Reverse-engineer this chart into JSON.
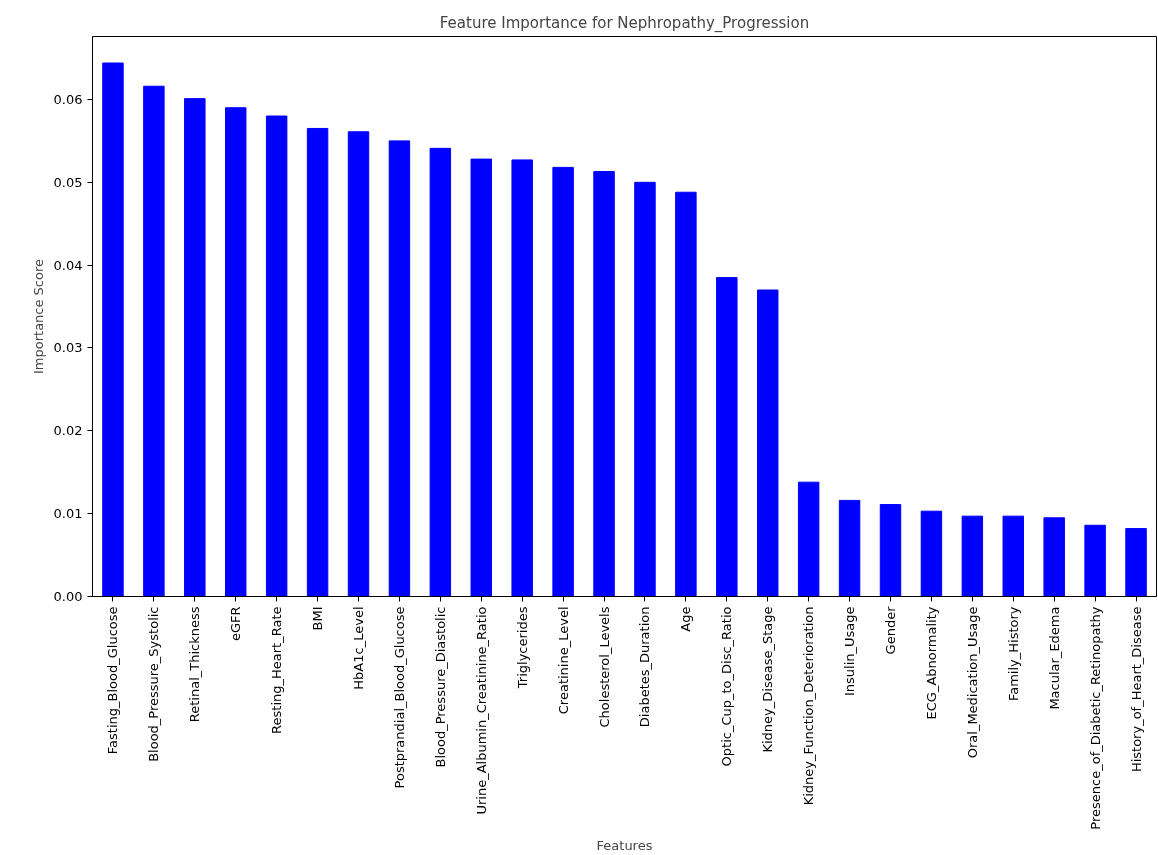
{
  "chart_data": {
    "type": "bar",
    "title": "Feature Importance for Nephropathy_Progression",
    "xlabel": "Features",
    "ylabel": "Importance Score",
    "categories": [
      "Fasting_Blood_Glucose",
      "Blood_Pressure_Systolic",
      "Retinal_Thickness",
      "eGFR",
      "Resting_Heart_Rate",
      "BMI",
      "HbA1c_Level",
      "Postprandial_Blood_Glucose",
      "Blood_Pressure_Diastolic",
      "Urine_Albumin_Creatinine_Ratio",
      "Triglycerides",
      "Creatinine_Level",
      "Cholesterol_Levels",
      "Diabetes_Duration",
      "Age",
      "Optic_Cup_to_Disc_Ratio",
      "Kidney_Disease_Stage",
      "Kidney_Function_Deterioration",
      "Insulin_Usage",
      "Gender",
      "ECG_Abnormality",
      "Oral_Medication_Usage",
      "Family_History",
      "Macular_Edema",
      "Presence_of_Diabetic_Retinopathy",
      "History_of_Heart_Disease"
    ],
    "values": [
      0.0644,
      0.0616,
      0.0601,
      0.059,
      0.058,
      0.0565,
      0.0561,
      0.055,
      0.0541,
      0.0528,
      0.0527,
      0.0518,
      0.0513,
      0.05,
      0.0488,
      0.0385,
      0.037,
      0.0138,
      0.0116,
      0.0111,
      0.0103,
      0.0097,
      0.0097,
      0.0095,
      0.0086,
      0.0082
    ],
    "color": "#0000ff",
    "ylim": [
      0,
      0.0676
    ],
    "yticks": [
      {
        "value": 0,
        "label": "0.00"
      },
      {
        "value": 0.01,
        "label": "0.01"
      },
      {
        "value": 0.02,
        "label": "0.02"
      },
      {
        "value": 0.03,
        "label": "0.03"
      },
      {
        "value": 0.04,
        "label": "0.04"
      },
      {
        "value": 0.05,
        "label": "0.05"
      },
      {
        "value": 0.06,
        "label": "0.06"
      }
    ],
    "grid": false
  }
}
